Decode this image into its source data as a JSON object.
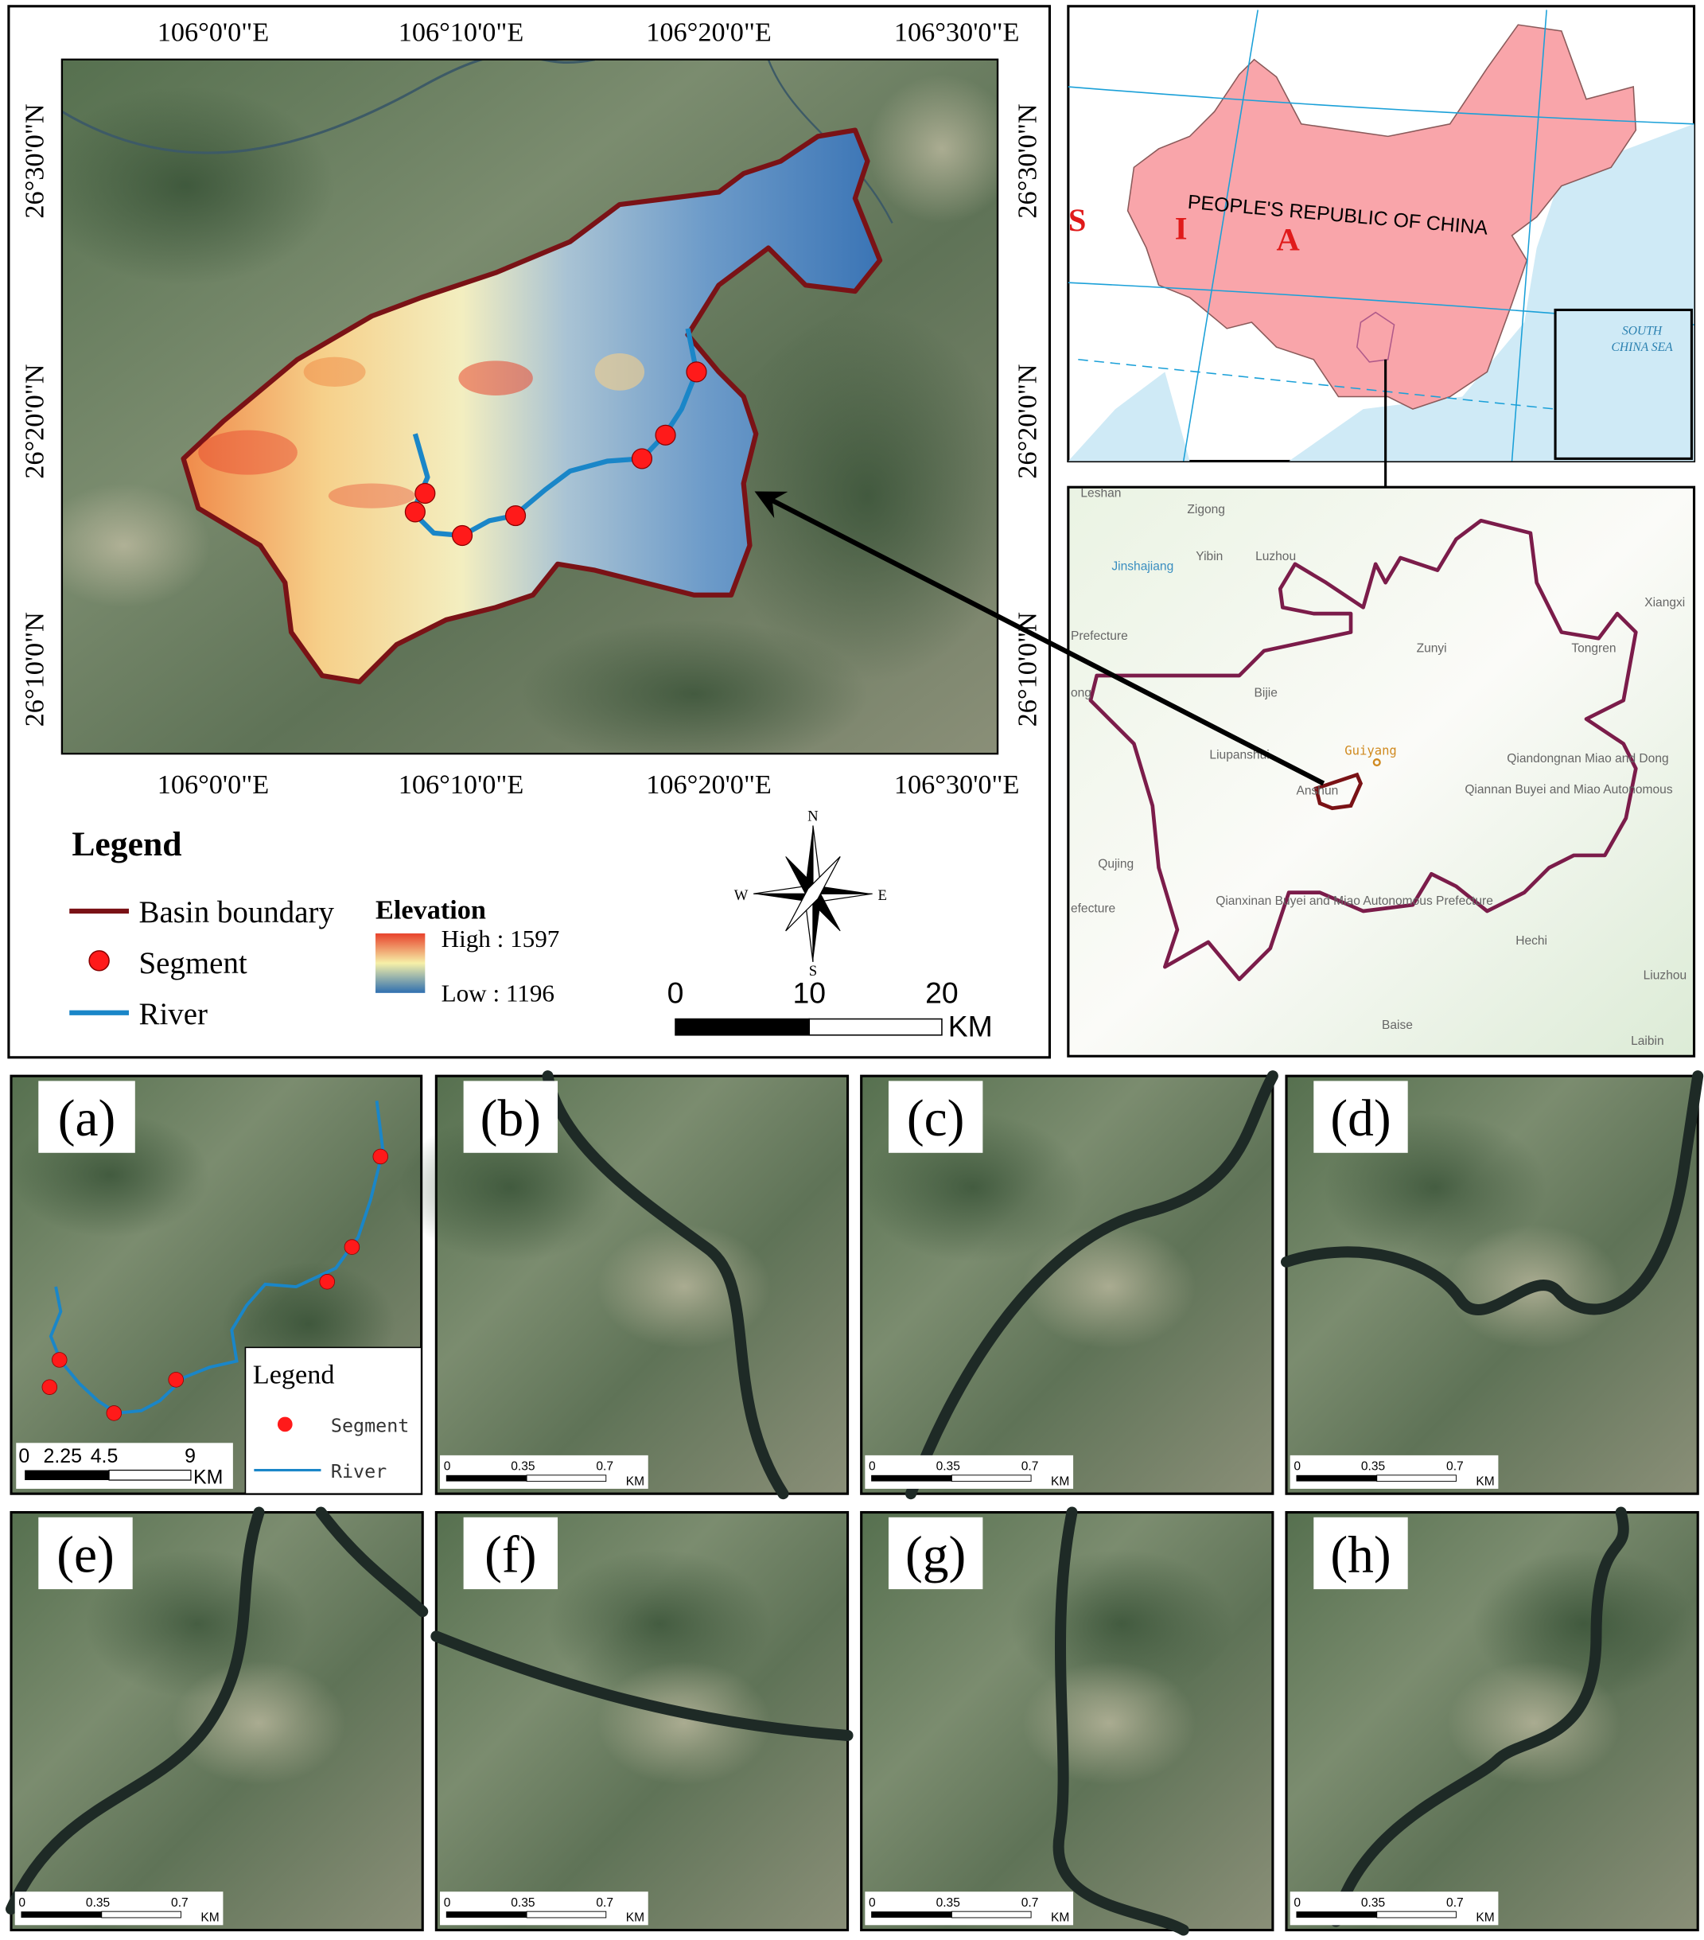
{
  "main_map": {
    "lon_labels": [
      "106°0'0\"E",
      "106°10'0\"E",
      "106°20'0\"E",
      "106°30'0\"E"
    ],
    "lat_labels": [
      "26°30'0\"N",
      "26°20'0\"N",
      "26°10'0\"N"
    ],
    "legend": {
      "title": "Legend",
      "basin_boundary": "Basin boundary",
      "segment": "Segment",
      "river": "River",
      "elevation_title": "Elevation",
      "high": "High : 1597",
      "low": "Low : 1196"
    },
    "compass": {
      "n": "N",
      "s": "S",
      "e": "E",
      "w": "W"
    },
    "scale": {
      "labels": [
        "0",
        "10",
        "20"
      ],
      "unit": "KM"
    },
    "colors": {
      "basin_boundary": "#7a1216",
      "segment": "#ff1a1a",
      "river": "#1a86c8",
      "elev_high": "#e8412b",
      "elev_mid": "#f6f0a8",
      "elev_low": "#2f6fb0"
    }
  },
  "china_map": {
    "country_label": "PEOPLE'S REPUBLIC OF CHINA",
    "asia_letters": [
      "S",
      "I",
      "A"
    ],
    "inset_label": [
      "SOUTH",
      "CHINA SEA"
    ],
    "colors": {
      "land": "#f9a5aa",
      "sea": "#cfeaf6",
      "lines": "#1aa0d8"
    }
  },
  "province_map": {
    "places": [
      "Leshan",
      "Zigong",
      "Yibin",
      "Luzhou",
      "Jinshajiang",
      "Prefecture",
      "Zunyi",
      "Tongren",
      "Xiangxi",
      "Bijie",
      "ong",
      "Liupanshui",
      "Guiyang",
      "Anshun",
      "Qiandongnan Miao and Dong",
      "Qiannan Buyei and Miao Autonomous",
      "Qujing",
      "efecture",
      "Qianxinan Buyei and Miao Autonomous Prefecture",
      "Hechi",
      "Liuzhou",
      "Baise",
      "Laibin"
    ],
    "colors": {
      "boundary": "#7b1c4a"
    }
  },
  "panel_a": {
    "label": "(a)",
    "legend_title": "Legend",
    "segment": "Segment",
    "river": "River",
    "scale_labels": [
      "0",
      "2.25",
      "4.5",
      "9"
    ],
    "scale_unit": "KM"
  },
  "panels": [
    {
      "label": "(b)",
      "scale": [
        "0",
        "0.35",
        "0.7"
      ],
      "unit": "KM"
    },
    {
      "label": "(c)",
      "scale": [
        "0",
        "0.35",
        "0.7"
      ],
      "unit": "KM"
    },
    {
      "label": "(d)",
      "scale": [
        "0",
        "0.35",
        "0.7"
      ],
      "unit": "KM"
    },
    {
      "label": "(e)",
      "scale": [
        "0",
        "0.35",
        "0.7"
      ],
      "unit": "KM"
    },
    {
      "label": "(f)",
      "scale": [
        "0",
        "0.35",
        "0.7"
      ],
      "unit": "KM"
    },
    {
      "label": "(g)",
      "scale": [
        "0",
        "0.35",
        "0.7"
      ],
      "unit": "KM"
    },
    {
      "label": "(h)",
      "scale": [
        "0",
        "0.35",
        "0.7"
      ],
      "unit": "KM"
    }
  ]
}
